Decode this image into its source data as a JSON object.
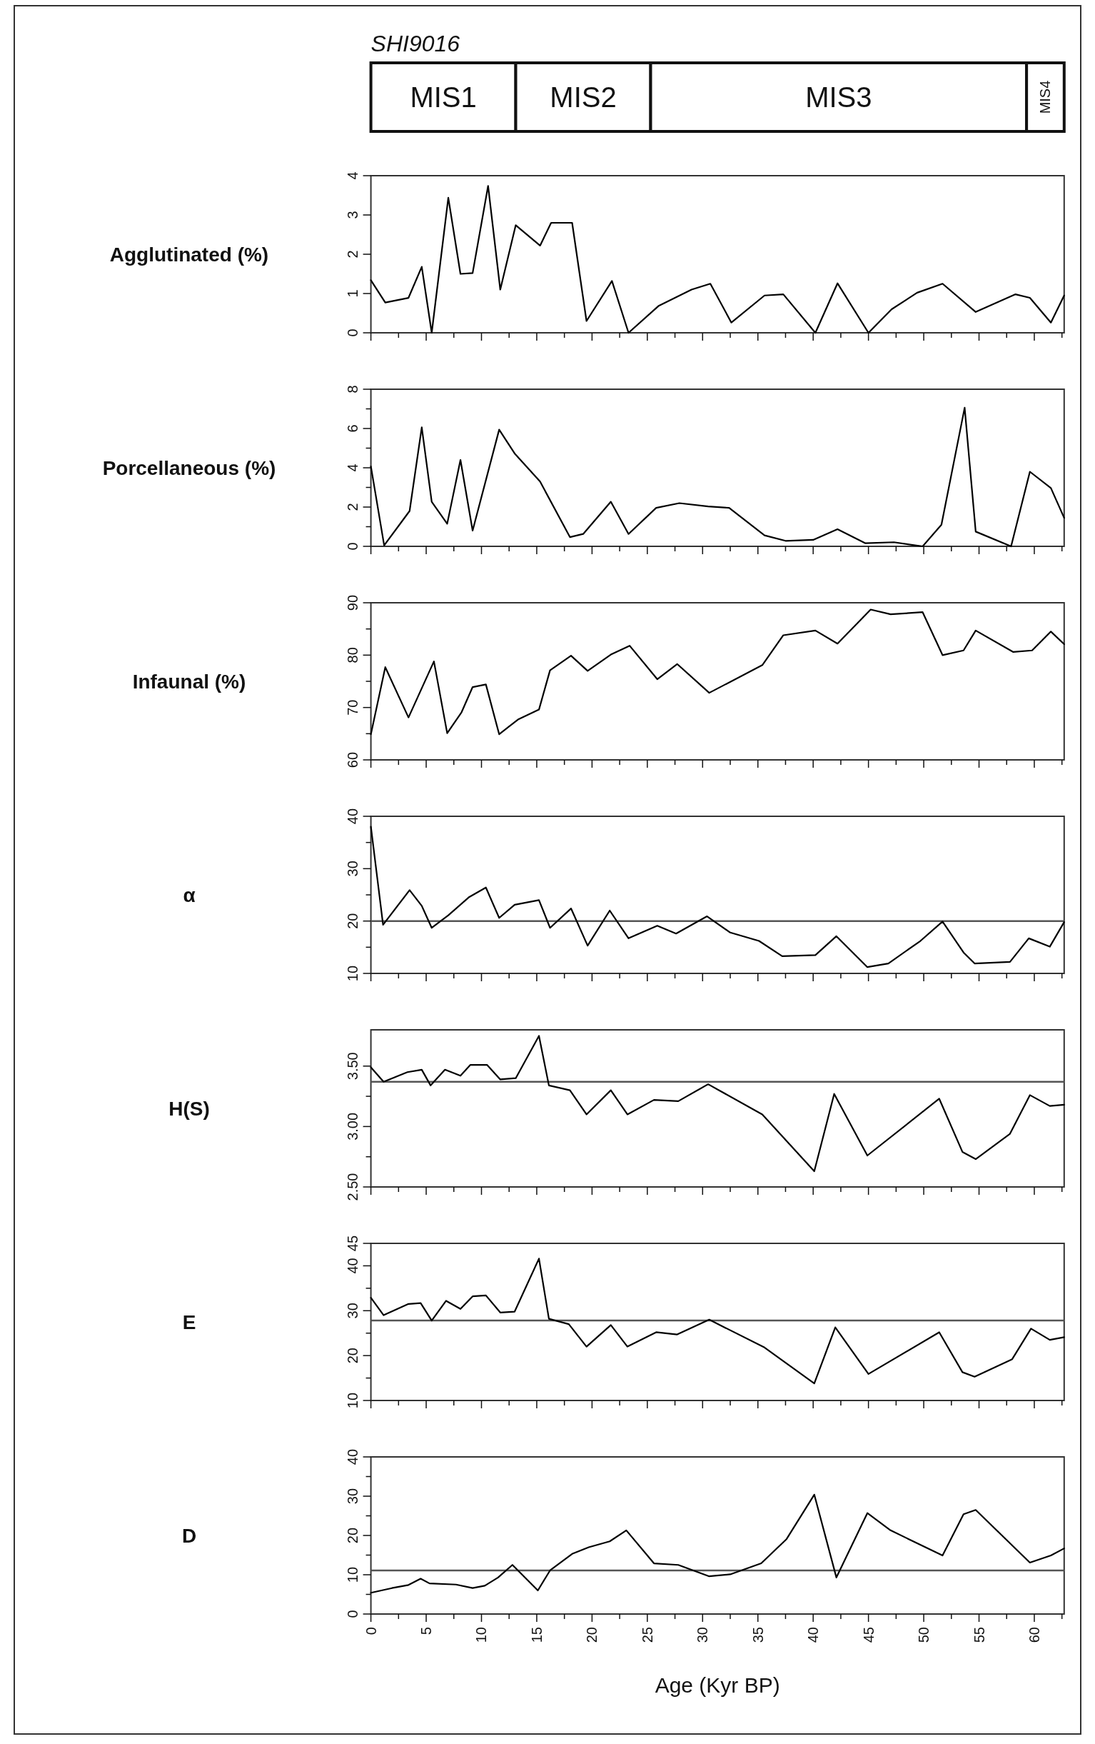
{
  "chart_data": [
    {
      "type": "bar",
      "title": "SHI9016",
      "orientation": "horizontal",
      "stacked": true,
      "categories": [
        null
      ],
      "xlim": [
        0,
        62.7
      ],
      "tick_labels": false,
      "series": [
        {
          "name": "MIS1",
          "color": "#ffffff",
          "values": [
            13.1
          ]
        },
        {
          "name": "MIS2",
          "color": "#ffffff",
          "values": [
            12.2
          ]
        },
        {
          "name": "MIS3",
          "color": "#ffffff",
          "values": [
            34
          ]
        },
        {
          "name": "MIS4",
          "color": "#ffffff",
          "values": [
            3.4
          ]
        }
      ]
    },
    {
      "type": "line",
      "ylabel": "Agglutinated (%)",
      "color": "#000000",
      "tick_labels": "y",
      "xlim": [
        0,
        62.7
      ],
      "ylim": [
        0,
        4
      ],
      "yticks": [
        0,
        1,
        2,
        3,
        4
      ],
      "xticks": [
        0,
        {
          "value": 2.5,
          "label": null
        },
        5,
        {
          "value": 7.5,
          "label": null
        },
        10,
        {
          "value": 12.5,
          "label": null
        },
        15,
        {
          "value": 17.5,
          "label": null
        },
        20,
        {
          "value": 22.5,
          "label": null
        },
        25,
        {
          "value": 27.5,
          "label": null
        },
        30,
        {
          "value": 32.5,
          "label": null
        },
        35,
        {
          "value": 37.5,
          "label": null
        },
        40,
        {
          "value": 42.5,
          "label": null
        },
        45,
        {
          "value": 47.5,
          "label": null
        },
        50,
        {
          "value": 52.5,
          "label": null
        },
        55,
        {
          "value": 57.5,
          "label": null
        },
        60,
        {
          "value": 62.5,
          "label": null
        }
      ],
      "x": [
        0,
        1.3,
        3.4,
        4.6,
        5.5,
        7.0,
        8.1,
        9.2,
        10.6,
        11.7,
        13.1,
        15.3,
        16.3,
        18.2,
        19.5,
        21.8,
        23.3,
        26.0,
        29.0,
        30.7,
        32.6,
        35.6,
        37.3,
        40.2,
        42.2,
        45.0,
        47.1,
        49.4,
        51.7,
        54.7,
        58.3,
        59.6,
        61.5,
        62.7
      ],
      "values": [
        1.34,
        0.77,
        0.89,
        1.68,
        0,
        3.44,
        1.5,
        1.52,
        3.74,
        1.1,
        2.74,
        2.22,
        2.8,
        2.8,
        0.3,
        1.32,
        0,
        0.68,
        1.1,
        1.25,
        0.26,
        0.95,
        0.98,
        0,
        1.26,
        0,
        0.6,
        1.02,
        1.25,
        0.53,
        0.98,
        0.89,
        0.26,
        0.95
      ]
    },
    {
      "type": "line",
      "ylabel": "Porcellaneous (%)",
      "color": "#000000",
      "tick_labels": "y",
      "xlim": [
        0,
        62.7
      ],
      "ylim": [
        0,
        8
      ],
      "yticks": [
        0,
        {
          "value": 1,
          "label": null
        },
        2,
        {
          "value": 3,
          "label": null
        },
        4,
        {
          "value": 5,
          "label": null
        },
        6,
        {
          "value": 7,
          "label": null
        },
        8
      ],
      "xticks": [
        0,
        {
          "value": 2.5,
          "label": null
        },
        5,
        {
          "value": 7.5,
          "label": null
        },
        10,
        {
          "value": 12.5,
          "label": null
        },
        15,
        {
          "value": 17.5,
          "label": null
        },
        20,
        {
          "value": 22.5,
          "label": null
        },
        25,
        {
          "value": 27.5,
          "label": null
        },
        30,
        {
          "value": 32.5,
          "label": null
        },
        35,
        {
          "value": 37.5,
          "label": null
        },
        40,
        {
          "value": 42.5,
          "label": null
        },
        45,
        {
          "value": 47.5,
          "label": null
        },
        50,
        {
          "value": 52.5,
          "label": null
        },
        55,
        {
          "value": 57.5,
          "label": null
        },
        60,
        {
          "value": 62.5,
          "label": null
        }
      ],
      "x": [
        0,
        1.2,
        3.5,
        4.6,
        5.5,
        6.9,
        8.1,
        9.2,
        11.6,
        13.0,
        15.3,
        18.0,
        19.2,
        21.7,
        23.3,
        25.8,
        27.9,
        30.5,
        32.4,
        35.6,
        37.5,
        40.0,
        42.2,
        44.7,
        47.3,
        49.9,
        51.6,
        53.7,
        54.7,
        57.9,
        59.6,
        61.5,
        62.7
      ],
      "values": [
        4.07,
        0.05,
        1.8,
        6.06,
        2.27,
        1.15,
        4.4,
        0.8,
        5.94,
        4.73,
        3.3,
        0.47,
        0.63,
        2.27,
        0.63,
        1.96,
        2.2,
        2.03,
        1.96,
        0.56,
        0.28,
        0.33,
        0.87,
        0.16,
        0.21,
        0,
        1.1,
        7.06,
        0.75,
        0,
        3.8,
        2.97,
        1.45
      ]
    },
    {
      "type": "line",
      "ylabel": "Infaunal (%)",
      "color": "#000000",
      "tick_labels": "y",
      "xlim": [
        0,
        62.7
      ],
      "ylim": [
        60,
        90
      ],
      "yticks": [
        60,
        {
          "value": 65,
          "label": null
        },
        70,
        {
          "value": 75,
          "label": null
        },
        80,
        {
          "value": 85,
          "label": null
        },
        90
      ],
      "xticks": [
        0,
        {
          "value": 2.5,
          "label": null
        },
        5,
        {
          "value": 7.5,
          "label": null
        },
        10,
        {
          "value": 12.5,
          "label": null
        },
        15,
        {
          "value": 17.5,
          "label": null
        },
        20,
        {
          "value": 22.5,
          "label": null
        },
        25,
        {
          "value": 27.5,
          "label": null
        },
        30,
        {
          "value": 32.5,
          "label": null
        },
        35,
        {
          "value": 37.5,
          "label": null
        },
        40,
        {
          "value": 42.5,
          "label": null
        },
        45,
        {
          "value": 47.5,
          "label": null
        },
        50,
        {
          "value": 52.5,
          "label": null
        },
        55,
        {
          "value": 57.5,
          "label": null
        },
        60,
        {
          "value": 62.5,
          "label": null
        }
      ],
      "x": [
        0,
        1.3,
        3.4,
        5.7,
        6.9,
        8.2,
        9.2,
        10.4,
        11.6,
        13.3,
        15.2,
        16.2,
        18.1,
        19.6,
        21.7,
        23.4,
        25.9,
        27.7,
        30.6,
        35.4,
        37.3,
        40.2,
        42.2,
        45.2,
        47.0,
        49.9,
        51.7,
        53.6,
        54.7,
        58.1,
        59.8,
        61.5,
        62.7
      ],
      "values": [
        64.9,
        77.7,
        68.1,
        78.8,
        65.1,
        69.1,
        73.9,
        74.4,
        64.9,
        67.7,
        69.6,
        77.1,
        79.9,
        77.0,
        80.1,
        81.8,
        75.4,
        78.3,
        72.8,
        78.1,
        83.8,
        84.7,
        82.2,
        88.7,
        87.8,
        88.2,
        80.0,
        80.9,
        84.7,
        80.6,
        80.9,
        84.5,
        82.1
      ]
    },
    {
      "type": "line",
      "ylabel": "α",
      "color": "#000000",
      "tick_labels": "y",
      "xlim": [
        0,
        62.7
      ],
      "ylim": [
        10,
        40
      ],
      "yticks": [
        10,
        {
          "value": 15,
          "label": null
        },
        20,
        {
          "value": 25,
          "label": null
        },
        30,
        {
          "value": 35,
          "label": null
        },
        40
      ],
      "xticks": [
        0,
        {
          "value": 2.5,
          "label": null
        },
        5,
        {
          "value": 7.5,
          "label": null
        },
        10,
        {
          "value": 12.5,
          "label": null
        },
        15,
        {
          "value": 17.5,
          "label": null
        },
        20,
        {
          "value": 22.5,
          "label": null
        },
        25,
        {
          "value": 27.5,
          "label": null
        },
        30,
        {
          "value": 32.5,
          "label": null
        },
        35,
        {
          "value": 37.5,
          "label": null
        },
        40,
        {
          "value": 42.5,
          "label": null
        },
        45,
        {
          "value": 47.5,
          "label": null
        },
        50,
        {
          "value": 52.5,
          "label": null
        },
        55,
        {
          "value": 57.5,
          "label": null
        },
        60,
        {
          "value": 62.5,
          "label": null
        }
      ],
      "ref_lines": [
        {
          "axis": "y",
          "value": 20,
          "color": "#555555"
        }
      ],
      "x": [
        0,
        1.1,
        3.5,
        4.6,
        5.5,
        7.0,
        8.9,
        10.4,
        11.6,
        13.0,
        15.2,
        16.2,
        18.1,
        19.6,
        21.6,
        23.3,
        25.9,
        27.6,
        30.4,
        32.5,
        35.1,
        37.2,
        40.2,
        42.1,
        44.9,
        46.8,
        49.7,
        51.7,
        53.6,
        54.6,
        57.8,
        59.5,
        61.4,
        62.7
      ],
      "values": [
        38.0,
        19.3,
        25.9,
        22.9,
        18.7,
        21.1,
        24.6,
        26.4,
        20.6,
        23.1,
        24.0,
        18.7,
        22.4,
        15.3,
        22.0,
        16.7,
        19.1,
        17.6,
        20.9,
        17.8,
        16.2,
        13.3,
        13.5,
        17.1,
        11.2,
        11.9,
        16.2,
        19.9,
        14.0,
        11.9,
        12.2,
        16.7,
        15.1,
        19.8
      ]
    },
    {
      "type": "line",
      "ylabel": "H(S)",
      "color": "#000000",
      "tick_labels": "y",
      "xlim": [
        0,
        62.7
      ],
      "ylim": [
        2.5,
        3.8
      ],
      "yticks": [
        {
          "value": 2.5,
          "label": "2.50"
        },
        {
          "value": 2.75,
          "label": null
        },
        {
          "value": 3,
          "label": "3.00"
        },
        {
          "value": 3.25,
          "label": null
        },
        {
          "value": 3.5,
          "label": "3.50"
        }
      ],
      "xticks": [
        0,
        {
          "value": 2.5,
          "label": null
        },
        5,
        {
          "value": 7.5,
          "label": null
        },
        10,
        {
          "value": 12.5,
          "label": null
        },
        15,
        {
          "value": 17.5,
          "label": null
        },
        20,
        {
          "value": 22.5,
          "label": null
        },
        25,
        {
          "value": 27.5,
          "label": null
        },
        30,
        {
          "value": 32.5,
          "label": null
        },
        35,
        {
          "value": 37.5,
          "label": null
        },
        40,
        {
          "value": 42.5,
          "label": null
        },
        45,
        {
          "value": 47.5,
          "label": null
        },
        50,
        {
          "value": 52.5,
          "label": null
        },
        55,
        {
          "value": 57.5,
          "label": null
        },
        60,
        {
          "value": 62.5,
          "label": null
        }
      ],
      "ref_lines": [
        {
          "axis": "y",
          "value": 3.37,
          "color": "#555555"
        }
      ],
      "x": [
        0,
        1.15,
        3.3,
        4.6,
        5.4,
        6.7,
        8.1,
        9.0,
        10.5,
        11.7,
        13.1,
        15.2,
        16.1,
        18.0,
        19.5,
        21.7,
        23.2,
        25.6,
        27.8,
        30.5,
        35.4,
        40.1,
        41.9,
        44.9,
        51.4,
        53.5,
        54.7,
        57.8,
        59.6,
        61.4,
        62.7
      ],
      "values": [
        3.49,
        3.37,
        3.45,
        3.47,
        3.34,
        3.47,
        3.42,
        3.51,
        3.51,
        3.39,
        3.4,
        3.75,
        3.34,
        3.3,
        3.1,
        3.3,
        3.1,
        3.22,
        3.21,
        3.35,
        3.1,
        2.63,
        3.27,
        2.76,
        3.23,
        2.79,
        2.73,
        2.94,
        3.26,
        3.17,
        3.18
      ]
    },
    {
      "type": "line",
      "ylabel": "E",
      "color": "#000000",
      "tick_labels": "y",
      "xlim": [
        0,
        62.7
      ],
      "ylim": [
        10,
        45
      ],
      "yticks": [
        10,
        {
          "value": 15,
          "label": null
        },
        20,
        {
          "value": 25,
          "label": null
        },
        30,
        {
          "value": 35,
          "label": null
        },
        40,
        45
      ],
      "xticks": [
        0,
        {
          "value": 2.5,
          "label": null
        },
        5,
        {
          "value": 7.5,
          "label": null
        },
        10,
        {
          "value": 12.5,
          "label": null
        },
        15,
        {
          "value": 17.5,
          "label": null
        },
        20,
        {
          "value": 22.5,
          "label": null
        },
        25,
        {
          "value": 27.5,
          "label": null
        },
        30,
        {
          "value": 32.5,
          "label": null
        },
        35,
        {
          "value": 37.5,
          "label": null
        },
        40,
        {
          "value": 42.5,
          "label": null
        },
        45,
        {
          "value": 47.5,
          "label": null
        },
        50,
        {
          "value": 52.5,
          "label": null
        },
        55,
        {
          "value": 57.5,
          "label": null
        },
        60,
        {
          "value": 62.5,
          "label": null
        }
      ],
      "ref_lines": [
        {
          "axis": "y",
          "value": 27.8,
          "color": "#555555"
        }
      ],
      "x": [
        0,
        1.15,
        3.4,
        4.5,
        5.5,
        6.8,
        8.1,
        9.2,
        10.4,
        11.7,
        13.0,
        15.2,
        16.1,
        17.9,
        19.5,
        21.7,
        23.2,
        25.8,
        27.7,
        30.6,
        35.6,
        40.1,
        42.0,
        45.0,
        51.4,
        53.5,
        54.6,
        58.0,
        59.7,
        61.4,
        62.7
      ],
      "values": [
        32.9,
        29.0,
        31.5,
        31.7,
        27.8,
        32.2,
        30.4,
        33.2,
        33.4,
        29.6,
        29.8,
        41.6,
        28.2,
        27.0,
        22.0,
        26.8,
        22.0,
        25.2,
        24.7,
        28.0,
        21.8,
        13.8,
        26.3,
        15.9,
        25.2,
        16.3,
        15.3,
        19.2,
        26.0,
        23.5,
        24.1
      ]
    },
    {
      "type": "line",
      "ylabel": "D",
      "xlabel": "Age (Kyr BP)",
      "color": "#000000",
      "xlim": [
        0,
        62.7
      ],
      "ylim": [
        0,
        40
      ],
      "yticks": [
        0,
        {
          "value": 5,
          "label": null
        },
        10,
        {
          "value": 15,
          "label": null
        },
        20,
        {
          "value": 25,
          "label": null
        },
        30,
        {
          "value": 35,
          "label": null
        },
        40
      ],
      "xticks": [
        0,
        {
          "value": 2.5,
          "label": null
        },
        5,
        {
          "value": 7.5,
          "label": null
        },
        10,
        {
          "value": 12.5,
          "label": null
        },
        15,
        {
          "value": 17.5,
          "label": null
        },
        20,
        {
          "value": 22.5,
          "label": null
        },
        25,
        {
          "value": 27.5,
          "label": null
        },
        30,
        {
          "value": 32.5,
          "label": null
        },
        35,
        {
          "value": 37.5,
          "label": null
        },
        40,
        {
          "value": 42.5,
          "label": null
        },
        45,
        {
          "value": 47.5,
          "label": null
        },
        50,
        {
          "value": 52.5,
          "label": null
        },
        55,
        {
          "value": 57.5,
          "label": null
        },
        60,
        {
          "value": 62.5,
          "label": null
        }
      ],
      "ref_lines": [
        {
          "axis": "y",
          "value": 11.1,
          "color": "#555555"
        }
      ],
      "x": [
        0,
        1.9,
        3.4,
        4.5,
        5.3,
        7.7,
        9.2,
        10.3,
        11.5,
        12.8,
        15.1,
        16.2,
        18.2,
        19.7,
        21.6,
        23.1,
        25.6,
        27.8,
        30.6,
        32.5,
        35.3,
        37.6,
        40.1,
        42.1,
        44.9,
        47.0,
        51.7,
        53.6,
        54.7,
        59.6,
        61.5,
        62.7
      ],
      "values": [
        5.4,
        6.6,
        7.4,
        9.0,
        7.8,
        7.5,
        6.6,
        7.2,
        9.3,
        12.5,
        6.0,
        11.1,
        15.3,
        17.0,
        18.5,
        21.3,
        12.9,
        12.5,
        9.6,
        10.1,
        12.9,
        19.1,
        30.4,
        9.3,
        25.7,
        21.3,
        14.9,
        25.4,
        26.5,
        13.1,
        14.9,
        16.7
      ]
    }
  ]
}
